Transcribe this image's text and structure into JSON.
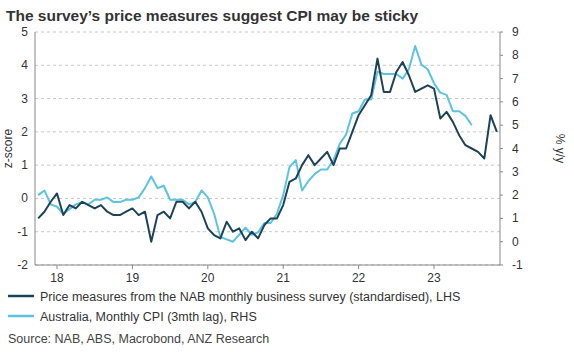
{
  "chart_data": {
    "type": "line",
    "title": "The survey’s price measures suggest CPI may be sticky",
    "y_label": "z-score",
    "y2_label": "% y/y",
    "source": "Source: NAB, ABS, Macrobond, ANZ Research",
    "categories": [
      null,
      null,
      null,
      "18",
      null,
      null,
      null,
      null,
      null,
      null,
      null,
      null,
      null,
      null,
      null,
      "19",
      null,
      null,
      null,
      null,
      null,
      null,
      null,
      null,
      null,
      null,
      null,
      "20",
      null,
      null,
      null,
      null,
      null,
      null,
      null,
      null,
      null,
      null,
      null,
      "21",
      null,
      null,
      null,
      null,
      null,
      null,
      null,
      null,
      null,
      null,
      null,
      "22",
      null,
      null,
      null,
      null,
      null,
      null,
      null,
      null,
      null,
      null,
      null,
      "23",
      null,
      null,
      null,
      null,
      null,
      null,
      null,
      null,
      null,
      null
    ],
    "series": [
      {
        "name": "Price measures from the NAB monthly business survey (standardised), LHS",
        "color": "#1d4257",
        "values": [
          -0.6,
          -0.4,
          -0.1,
          0.15,
          -0.5,
          -0.2,
          -0.3,
          -0.1,
          -0.2,
          -0.3,
          -0.2,
          -0.4,
          -0.5,
          -0.5,
          -0.4,
          -0.3,
          -0.5,
          -0.4,
          -1.3,
          -0.5,
          -0.4,
          -0.6,
          -0.1,
          -0.1,
          -0.3,
          -0.1,
          -0.4,
          -0.9,
          -1.1,
          -1.2,
          -0.7,
          -1.0,
          -0.9,
          -1.25,
          -1.0,
          -1.2,
          -0.8,
          -0.6,
          -0.6,
          -0.2,
          0.5,
          0.6,
          1.0,
          1.3,
          1.0,
          1.2,
          1.4,
          1.0,
          1.5,
          1.5,
          2.0,
          2.5,
          2.8,
          3.1,
          4.2,
          3.2,
          3.2,
          3.8,
          4.1,
          3.7,
          3.2,
          3.3,
          3.4,
          3.3,
          2.4,
          2.6,
          2.3,
          1.9,
          1.6,
          1.5,
          1.4,
          1.2,
          2.5,
          2.0
        ]
      },
      {
        "name": "Australia, Monthly CPI (3mth lag), RHS",
        "color": "#5cc3e0",
        "axis": "y2",
        "values": [
          2.0,
          2.2,
          1.6,
          1.5,
          1.2,
          1.4,
          1.6,
          1.7,
          1.6,
          1.8,
          1.8,
          1.9,
          1.7,
          1.7,
          1.8,
          1.8,
          1.9,
          2.3,
          2.8,
          2.3,
          2.4,
          1.8,
          1.8,
          1.8,
          1.6,
          1.7,
          2.2,
          1.9,
          1.2,
          0.2,
          0.1,
          0.0,
          0.3,
          0.6,
          0.3,
          0.4,
          0.8,
          0.8,
          1.2,
          2.0,
          3.2,
          3.5,
          2.2,
          2.6,
          2.9,
          3.1,
          3.1,
          3.5,
          4.2,
          4.6,
          5.5,
          5.6,
          6.1,
          6.1,
          7.3,
          7.2,
          7.2,
          7.2,
          7.0,
          7.4,
          8.4,
          7.6,
          7.4,
          6.8,
          6.4,
          6.3,
          5.6,
          5.6,
          5.4,
          5.0,
          null,
          null,
          null,
          null
        ]
      }
    ],
    "ylim": [
      -2,
      5
    ],
    "yticks": [
      -2,
      -1,
      0,
      1,
      2,
      3,
      4,
      5
    ],
    "y2lim": [
      -1,
      9
    ],
    "y2ticks": [
      -1,
      0,
      1,
      2,
      3,
      4,
      5,
      6,
      7,
      8,
      9
    ],
    "grid": true,
    "legend": "bottom"
  }
}
